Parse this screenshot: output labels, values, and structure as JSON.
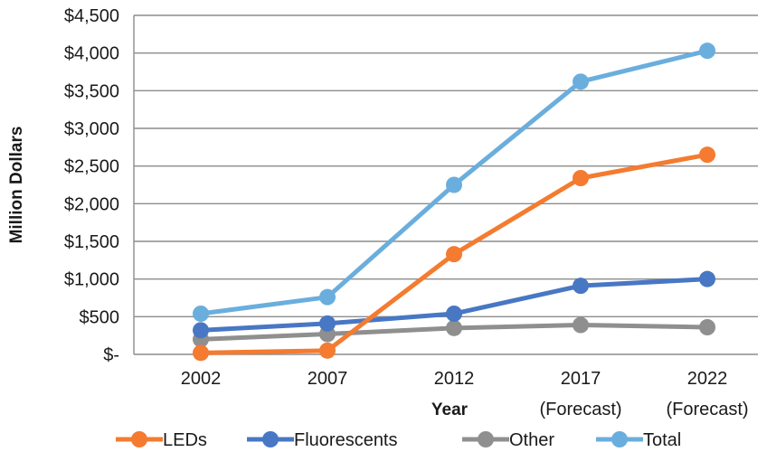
{
  "chart_data": {
    "type": "line",
    "title": "",
    "xlabel": "Year",
    "ylabel": "Million Dollars",
    "categories": [
      {
        "line1": "2002",
        "line2": ""
      },
      {
        "line1": "2007",
        "line2": ""
      },
      {
        "line1": "2012",
        "line2": ""
      },
      {
        "line1": "2017",
        "line2": "(Forecast)"
      },
      {
        "line1": "2022",
        "line2": "(Forecast)"
      }
    ],
    "y_ticks": [
      {
        "value": 0,
        "label": "$-"
      },
      {
        "value": 500,
        "label": "$500"
      },
      {
        "value": 1000,
        "label": "$1,000"
      },
      {
        "value": 1500,
        "label": "$1,500"
      },
      {
        "value": 2000,
        "label": "$2,000"
      },
      {
        "value": 2500,
        "label": "$2,500"
      },
      {
        "value": 3000,
        "label": "$3,000"
      },
      {
        "value": 3500,
        "label": "$3,500"
      },
      {
        "value": 4000,
        "label": "$4,000"
      },
      {
        "value": 4500,
        "label": "$4,500"
      }
    ],
    "ylim": [
      0,
      4500
    ],
    "grid": true,
    "legend_position": "bottom",
    "series": [
      {
        "name": "LEDs",
        "color": "#F47B30",
        "values": [
          20,
          50,
          1330,
          2340,
          2650
        ]
      },
      {
        "name": "Fluorescents",
        "color": "#4877C4",
        "values": [
          320,
          410,
          540,
          910,
          1000
        ]
      },
      {
        "name": "Other",
        "color": "#8F8F8F",
        "values": [
          200,
          270,
          350,
          390,
          360
        ]
      },
      {
        "name": "Total",
        "color": "#6AAEDD",
        "values": [
          540,
          760,
          2250,
          3620,
          4030
        ]
      }
    ]
  }
}
